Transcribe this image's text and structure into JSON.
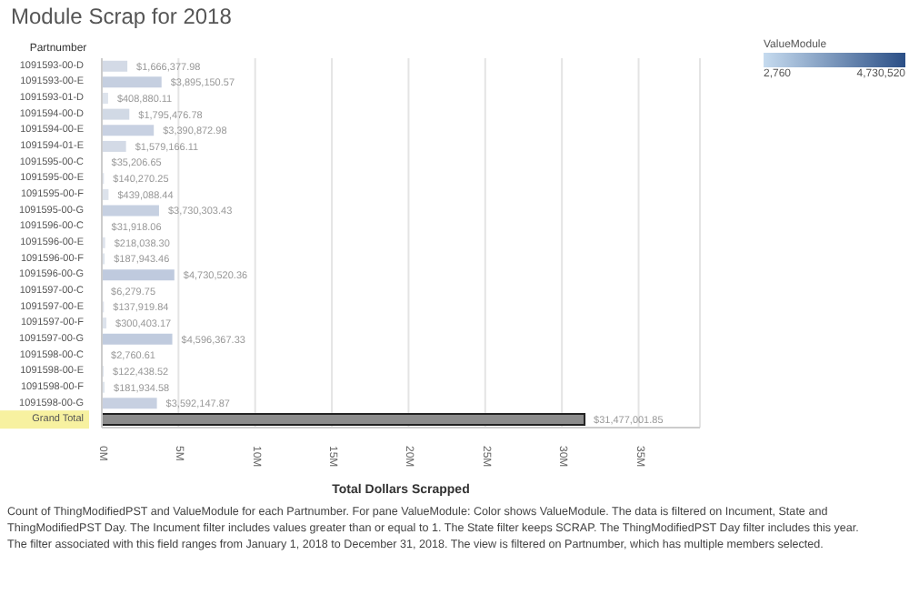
{
  "chart_data": {
    "type": "bar",
    "orientation": "horizontal",
    "title": "Module Scrap for 2018",
    "ylabel": "Partnumber",
    "xlabel": "Total Dollars Scrapped",
    "clabel": "ValueModule",
    "categories": [
      "1091593-00-D",
      "1091593-00-E",
      "1091593-01-D",
      "1091594-00-D",
      "1091594-00-E",
      "1091594-01-E",
      "1091595-00-C",
      "1091595-00-E",
      "1091595-00-F",
      "1091595-00-G",
      "1091596-00-C",
      "1091596-00-E",
      "1091596-00-F",
      "1091596-00-G",
      "1091597-00-C",
      "1091597-00-E",
      "1091597-00-F",
      "1091597-00-G",
      "1091598-00-C",
      "1091598-00-E",
      "1091598-00-F",
      "1091598-00-G",
      "Grand Total"
    ],
    "values": [
      1666377.98,
      3895150.57,
      408880.11,
      1795476.78,
      3390872.98,
      1579166.11,
      35206.65,
      140270.25,
      439088.44,
      3730303.43,
      31918.06,
      218038.3,
      187943.46,
      4730520.36,
      6279.75,
      137919.84,
      300403.17,
      4596367.33,
      2760.61,
      122438.52,
      181934.58,
      3592147.87,
      31477001.85
    ],
    "value_labels": [
      "$1,666,377.98",
      "$3,895,150.57",
      "$408,880.11",
      "$1,795,476.78",
      "$3,390,872.98",
      "$1,579,166.11",
      "$35,206.65",
      "$140,270.25",
      "$439,088.44",
      "$3,730,303.43",
      "$31,918.06",
      "$218,038.30",
      "$187,943.46",
      "$4,730,520.36",
      "$6,279.75",
      "$137,919.84",
      "$300,403.17",
      "$4,596,367.33",
      "$2,760.61",
      "$122,438.52",
      "$181,934.58",
      "$3,592,147.87",
      "$31,477,001.85"
    ],
    "colors": [
      "#d3dae6",
      "#c5cfe0",
      "#dde3ec",
      "#d1d9e5",
      "#c8d1e2",
      "#d3dae6",
      "#e1e6ee",
      "#dfe4ed",
      "#dce2eb",
      "#c6d0e1",
      "#e1e6ee",
      "#dee3ec",
      "#dee4ec",
      "#bfcade",
      "#e2e6ee",
      "#dfe4ed",
      "#dde3ec",
      "#c0cbde",
      "#e2e6ee",
      "#dfe4ed",
      "#dee4ec",
      "#c7d0e1",
      "#8c8c8c"
    ],
    "clim": [
      2760,
      4730520
    ],
    "cticks": [
      {
        "value": 2760,
        "label": "2,760"
      },
      {
        "value": 4730520,
        "label": "4,730,520"
      }
    ],
    "xlim": [
      0,
      39000000
    ],
    "xticks": [
      {
        "value": 0,
        "label": "0M"
      },
      {
        "value": 5000000,
        "label": "5M"
      },
      {
        "value": 10000000,
        "label": "10M"
      },
      {
        "value": 15000000,
        "label": "15M"
      },
      {
        "value": 20000000,
        "label": "20M"
      },
      {
        "value": 25000000,
        "label": "25M"
      },
      {
        "value": 30000000,
        "label": "30M"
      },
      {
        "value": 35000000,
        "label": "35M"
      }
    ],
    "grid": "x",
    "annotations": [
      "Count of ThingModifiedPST and ValueModule for each Partnumber.  For pane ValueModule: Color shows ValueModule. The data is filtered on Incument, State and ThingModifiedPST Day. The Incument filter includes values greater than or equal to 1. The State filter keeps SCRAP. The ThingModifiedPST Day filter includes this year. The filter associated with this field ranges from January 1, 2018 to December 31, 2018. The view is filtered on Partnumber, which has multiple members selected."
    ]
  }
}
